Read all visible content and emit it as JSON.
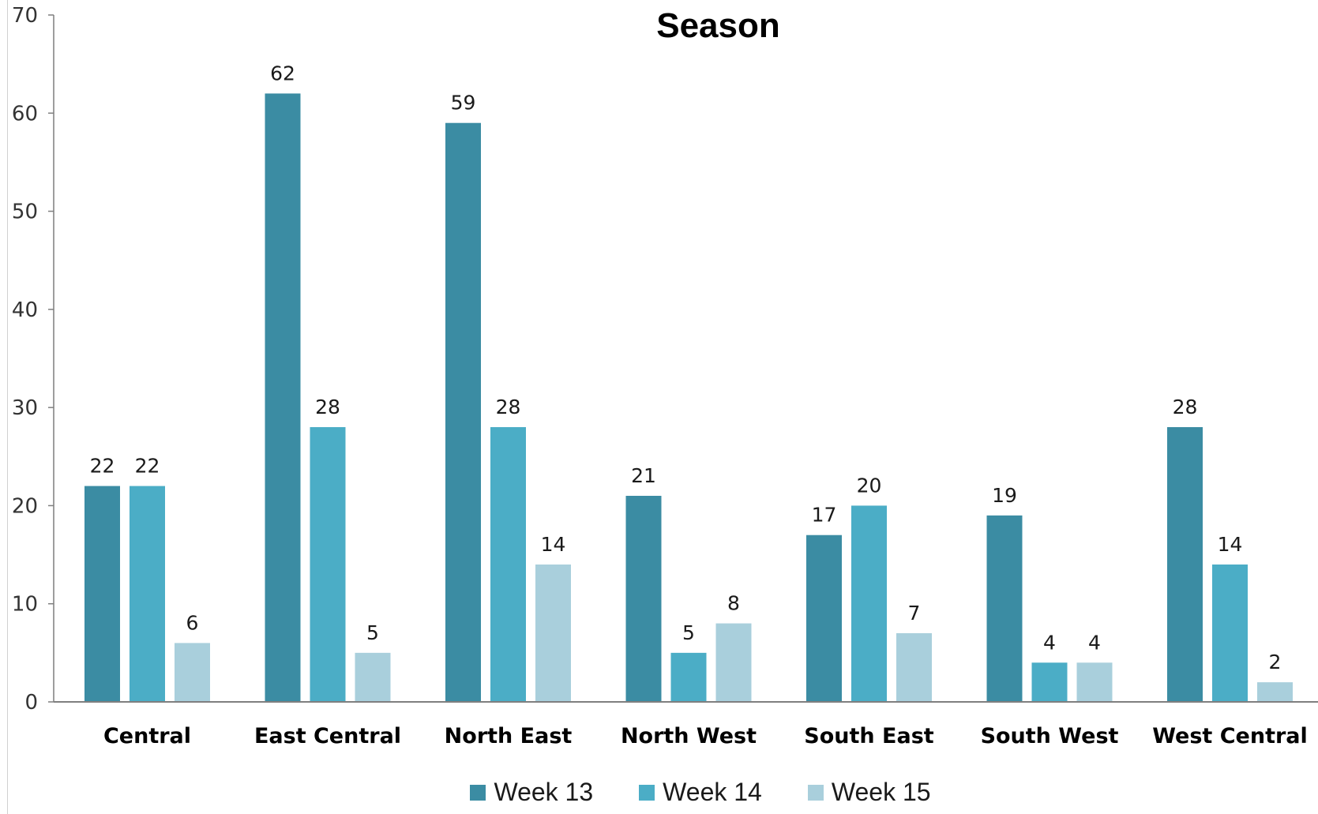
{
  "chart_data": {
    "type": "bar",
    "title": "Season",
    "xlabel": "",
    "ylabel": "",
    "ylim": [
      0,
      70
    ],
    "yticks": [
      0,
      10,
      20,
      30,
      40,
      50,
      60,
      70
    ],
    "grid": false,
    "legend_position": "bottom",
    "categories": [
      "Central",
      "East Central",
      "North East",
      "North West",
      "South East",
      "South West",
      "West Central"
    ],
    "series": [
      {
        "name": "Week 13",
        "color": "#3b8ca3",
        "values": [
          22,
          62,
          59,
          21,
          17,
          19,
          28
        ]
      },
      {
        "name": "Week 14",
        "color": "#4badc6",
        "values": [
          22,
          28,
          28,
          5,
          20,
          4,
          14
        ]
      },
      {
        "name": "Week 15",
        "color": "#a9cfdc",
        "values": [
          6,
          5,
          14,
          8,
          7,
          4,
          2
        ]
      }
    ]
  }
}
